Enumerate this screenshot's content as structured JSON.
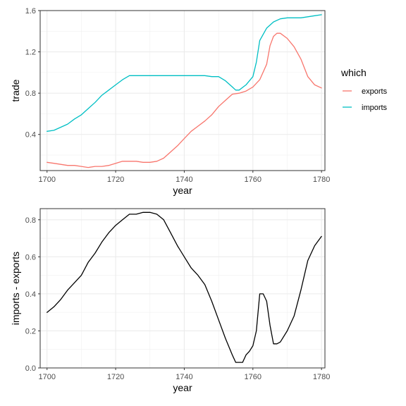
{
  "chart_data": [
    {
      "type": "line",
      "xlabel": "year",
      "ylabel": "trade",
      "xlim": [
        1698,
        1781
      ],
      "ylim": [
        0.05,
        1.6
      ],
      "xticks": [
        1700,
        1720,
        1740,
        1760,
        1780
      ],
      "yticks": [
        0.4,
        0.8,
        1.2,
        1.6
      ],
      "yticks_labels": [
        "0.4",
        "0.8",
        "1.2",
        "1.6"
      ],
      "grid": true,
      "legend": {
        "title": "which",
        "placement": "right"
      },
      "series": [
        {
          "name": "exports",
          "color": "#F8766D",
          "x": [
            1700,
            1702,
            1704,
            1706,
            1708,
            1710,
            1712,
            1714,
            1716,
            1718,
            1720,
            1722,
            1724,
            1726,
            1728,
            1730,
            1732,
            1734,
            1736,
            1738,
            1740,
            1742,
            1744,
            1746,
            1748,
            1750,
            1752,
            1754,
            1756,
            1758,
            1760,
            1762,
            1764,
            1765,
            1766,
            1767,
            1768,
            1770,
            1772,
            1774,
            1776,
            1778,
            1780
          ],
          "y": [
            0.13,
            0.12,
            0.11,
            0.1,
            0.1,
            0.09,
            0.08,
            0.09,
            0.09,
            0.1,
            0.12,
            0.14,
            0.14,
            0.14,
            0.13,
            0.13,
            0.14,
            0.17,
            0.23,
            0.29,
            0.36,
            0.43,
            0.48,
            0.53,
            0.59,
            0.67,
            0.73,
            0.79,
            0.8,
            0.82,
            0.86,
            0.93,
            1.08,
            1.26,
            1.35,
            1.38,
            1.38,
            1.33,
            1.25,
            1.13,
            0.96,
            0.88,
            0.85
          ]
        },
        {
          "name": "imports",
          "color": "#00BFC4",
          "x": [
            1700,
            1702,
            1704,
            1706,
            1708,
            1710,
            1712,
            1714,
            1716,
            1718,
            1720,
            1722,
            1724,
            1726,
            1728,
            1730,
            1732,
            1734,
            1736,
            1738,
            1740,
            1742,
            1744,
            1746,
            1748,
            1749,
            1750,
            1752,
            1754,
            1755,
            1756,
            1758,
            1760,
            1761,
            1762,
            1764,
            1766,
            1768,
            1770,
            1772,
            1774,
            1776,
            1778,
            1780
          ],
          "y": [
            0.43,
            0.44,
            0.47,
            0.5,
            0.55,
            0.59,
            0.65,
            0.71,
            0.78,
            0.83,
            0.88,
            0.93,
            0.97,
            0.97,
            0.97,
            0.97,
            0.97,
            0.97,
            0.97,
            0.97,
            0.97,
            0.97,
            0.97,
            0.97,
            0.96,
            0.96,
            0.96,
            0.92,
            0.86,
            0.83,
            0.83,
            0.88,
            0.96,
            1.1,
            1.31,
            1.43,
            1.49,
            1.52,
            1.53,
            1.53,
            1.53,
            1.54,
            1.55,
            1.56
          ]
        }
      ]
    },
    {
      "type": "line",
      "xlabel": "year",
      "ylabel": "imports - exports",
      "xlim": [
        1698,
        1781
      ],
      "ylim": [
        0,
        0.86
      ],
      "xticks": [
        1700,
        1720,
        1740,
        1760,
        1780
      ],
      "yticks": [
        0,
        0.2,
        0.4,
        0.6,
        0.8
      ],
      "yticks_labels": [
        "0.0",
        "0.2",
        "0.4",
        "0.6",
        "0.8"
      ],
      "grid": true,
      "series": [
        {
          "color": "#000000",
          "x": [
            1700,
            1702,
            1704,
            1706,
            1708,
            1710,
            1712,
            1714,
            1716,
            1718,
            1720,
            1722,
            1724,
            1726,
            1728,
            1730,
            1732,
            1734,
            1736,
            1738,
            1740,
            1742,
            1744,
            1746,
            1748,
            1750,
            1752,
            1754,
            1755,
            1756,
            1757,
            1758,
            1759,
            1760,
            1761,
            1762,
            1763,
            1764,
            1765,
            1766,
            1767,
            1768,
            1770,
            1772,
            1774,
            1776,
            1778,
            1780
          ],
          "y": [
            0.3,
            0.33,
            0.37,
            0.42,
            0.46,
            0.5,
            0.57,
            0.62,
            0.68,
            0.73,
            0.77,
            0.8,
            0.83,
            0.83,
            0.84,
            0.84,
            0.83,
            0.8,
            0.73,
            0.66,
            0.6,
            0.54,
            0.5,
            0.45,
            0.36,
            0.26,
            0.16,
            0.07,
            0.03,
            0.03,
            0.03,
            0.07,
            0.09,
            0.12,
            0.2,
            0.4,
            0.4,
            0.36,
            0.23,
            0.13,
            0.13,
            0.14,
            0.2,
            0.28,
            0.42,
            0.58,
            0.66,
            0.71
          ]
        }
      ]
    }
  ]
}
